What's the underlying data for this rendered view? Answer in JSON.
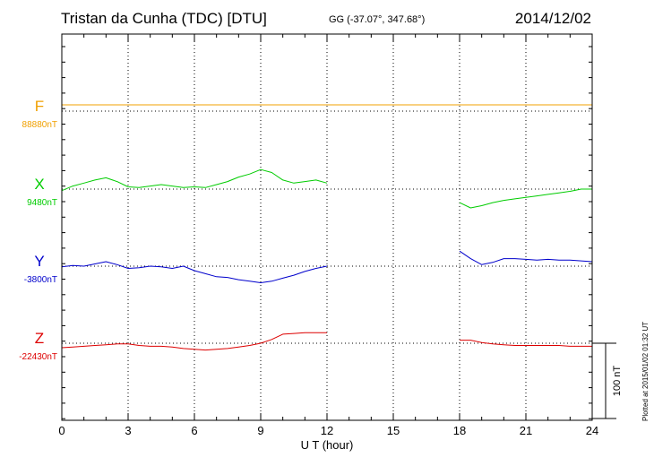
{
  "header": {
    "station": "Tristan da Cunha (TDC)  [DTU]",
    "coords": "GG (-37.07°, 347.68°)",
    "date": "2014/12/02"
  },
  "footer": {
    "plotted": "Plotted at 2015/01/02 01:32 UT"
  },
  "chart_data": {
    "type": "line",
    "title": "Tristan da Cunha (TDC)  [DTU]",
    "xlabel": "U T (hour)",
    "xlim": [
      0,
      24
    ],
    "xticks": [
      0,
      3,
      6,
      9,
      12,
      15,
      18,
      21,
      24
    ],
    "scale_bar": "100 nT",
    "grid": "dotted vertical lines every 3 hours; dotted baseline per component",
    "series": [
      {
        "name": "F",
        "baseline_label": "88880nT",
        "color": "#f0a000",
        "note": "flat trace at baseline",
        "points": [
          [
            0,
            0
          ],
          [
            24,
            0
          ]
        ]
      },
      {
        "name": "X",
        "baseline_label": "9480nT",
        "color": "#00cc00",
        "points": [
          [
            0,
            -2
          ],
          [
            0.5,
            4
          ],
          [
            1,
            8
          ],
          [
            1.5,
            12
          ],
          [
            2,
            15
          ],
          [
            2.5,
            10
          ],
          [
            3,
            3
          ],
          [
            3.5,
            2
          ],
          [
            4,
            4
          ],
          [
            4.5,
            6
          ],
          [
            5,
            4
          ],
          [
            5.5,
            2
          ],
          [
            6,
            3
          ],
          [
            6.5,
            2
          ],
          [
            7,
            6
          ],
          [
            7.5,
            10
          ],
          [
            8,
            16
          ],
          [
            8.5,
            20
          ],
          [
            9,
            26
          ],
          [
            9.5,
            22
          ],
          [
            10,
            12
          ],
          [
            10.5,
            8
          ],
          [
            11,
            10
          ],
          [
            11.5,
            12
          ],
          [
            12,
            8
          ],
          null,
          [
            18,
            -18
          ],
          [
            18.5,
            -25
          ],
          [
            19,
            -22
          ],
          [
            19.5,
            -18
          ],
          [
            20,
            -15
          ],
          [
            20.5,
            -13
          ],
          [
            21,
            -11
          ],
          [
            21.5,
            -9
          ],
          [
            22,
            -7
          ],
          [
            22.5,
            -5
          ],
          [
            23,
            -3
          ],
          [
            23.5,
            0
          ],
          [
            24,
            0
          ]
        ]
      },
      {
        "name": "Y",
        "baseline_label": "-3800nT",
        "color": "#0000cc",
        "points": [
          [
            0,
            -1
          ],
          [
            0.5,
            1
          ],
          [
            1,
            0
          ],
          [
            1.5,
            3
          ],
          [
            2,
            6
          ],
          [
            2.5,
            2
          ],
          [
            3,
            -3
          ],
          [
            3.5,
            -2
          ],
          [
            4,
            0
          ],
          [
            4.5,
            -1
          ],
          [
            5,
            -3
          ],
          [
            5.5,
            0
          ],
          [
            6,
            -6
          ],
          [
            6.5,
            -10
          ],
          [
            7,
            -14
          ],
          [
            7.5,
            -15
          ],
          [
            8,
            -18
          ],
          [
            8.5,
            -20
          ],
          [
            9,
            -22
          ],
          [
            9.5,
            -20
          ],
          [
            10,
            -16
          ],
          [
            10.5,
            -12
          ],
          [
            11,
            -7
          ],
          [
            11.5,
            -3
          ],
          [
            12,
            0
          ],
          null,
          [
            18,
            20
          ],
          [
            18.5,
            10
          ],
          [
            19,
            2
          ],
          [
            19.5,
            5
          ],
          [
            20,
            10
          ],
          [
            20.5,
            10
          ],
          [
            21,
            9
          ],
          [
            21.5,
            8
          ],
          [
            22,
            9
          ],
          [
            22.5,
            8
          ],
          [
            23,
            8
          ],
          [
            23.5,
            7
          ],
          [
            24,
            6
          ]
        ]
      },
      {
        "name": "Z",
        "baseline_label": "-22430nT",
        "color": "#dd0000",
        "points": [
          [
            0,
            -6
          ],
          [
            0.5,
            -5
          ],
          [
            1,
            -4
          ],
          [
            1.5,
            -3
          ],
          [
            2,
            -2
          ],
          [
            2.5,
            -1
          ],
          [
            3,
            -1
          ],
          [
            3.5,
            -3
          ],
          [
            4,
            -4
          ],
          [
            4.5,
            -4
          ],
          [
            5,
            -5
          ],
          [
            5.5,
            -7
          ],
          [
            6,
            -8
          ],
          [
            6.5,
            -9
          ],
          [
            7,
            -8
          ],
          [
            7.5,
            -7
          ],
          [
            8,
            -5
          ],
          [
            8.5,
            -3
          ],
          [
            9,
            0
          ],
          [
            9.5,
            5
          ],
          [
            10,
            12
          ],
          [
            10.5,
            13
          ],
          [
            11,
            14
          ],
          [
            11.5,
            14
          ],
          [
            12,
            14
          ],
          null,
          [
            18,
            4
          ],
          [
            18.5,
            4
          ],
          [
            19,
            1
          ],
          [
            19.5,
            -1
          ],
          [
            20,
            -2
          ],
          [
            20.5,
            -3
          ],
          [
            21,
            -3
          ],
          [
            21.5,
            -3
          ],
          [
            22,
            -3
          ],
          [
            22.5,
            -3
          ],
          [
            23,
            -4
          ],
          [
            23.5,
            -4
          ],
          [
            24,
            -4
          ]
        ]
      }
    ]
  }
}
